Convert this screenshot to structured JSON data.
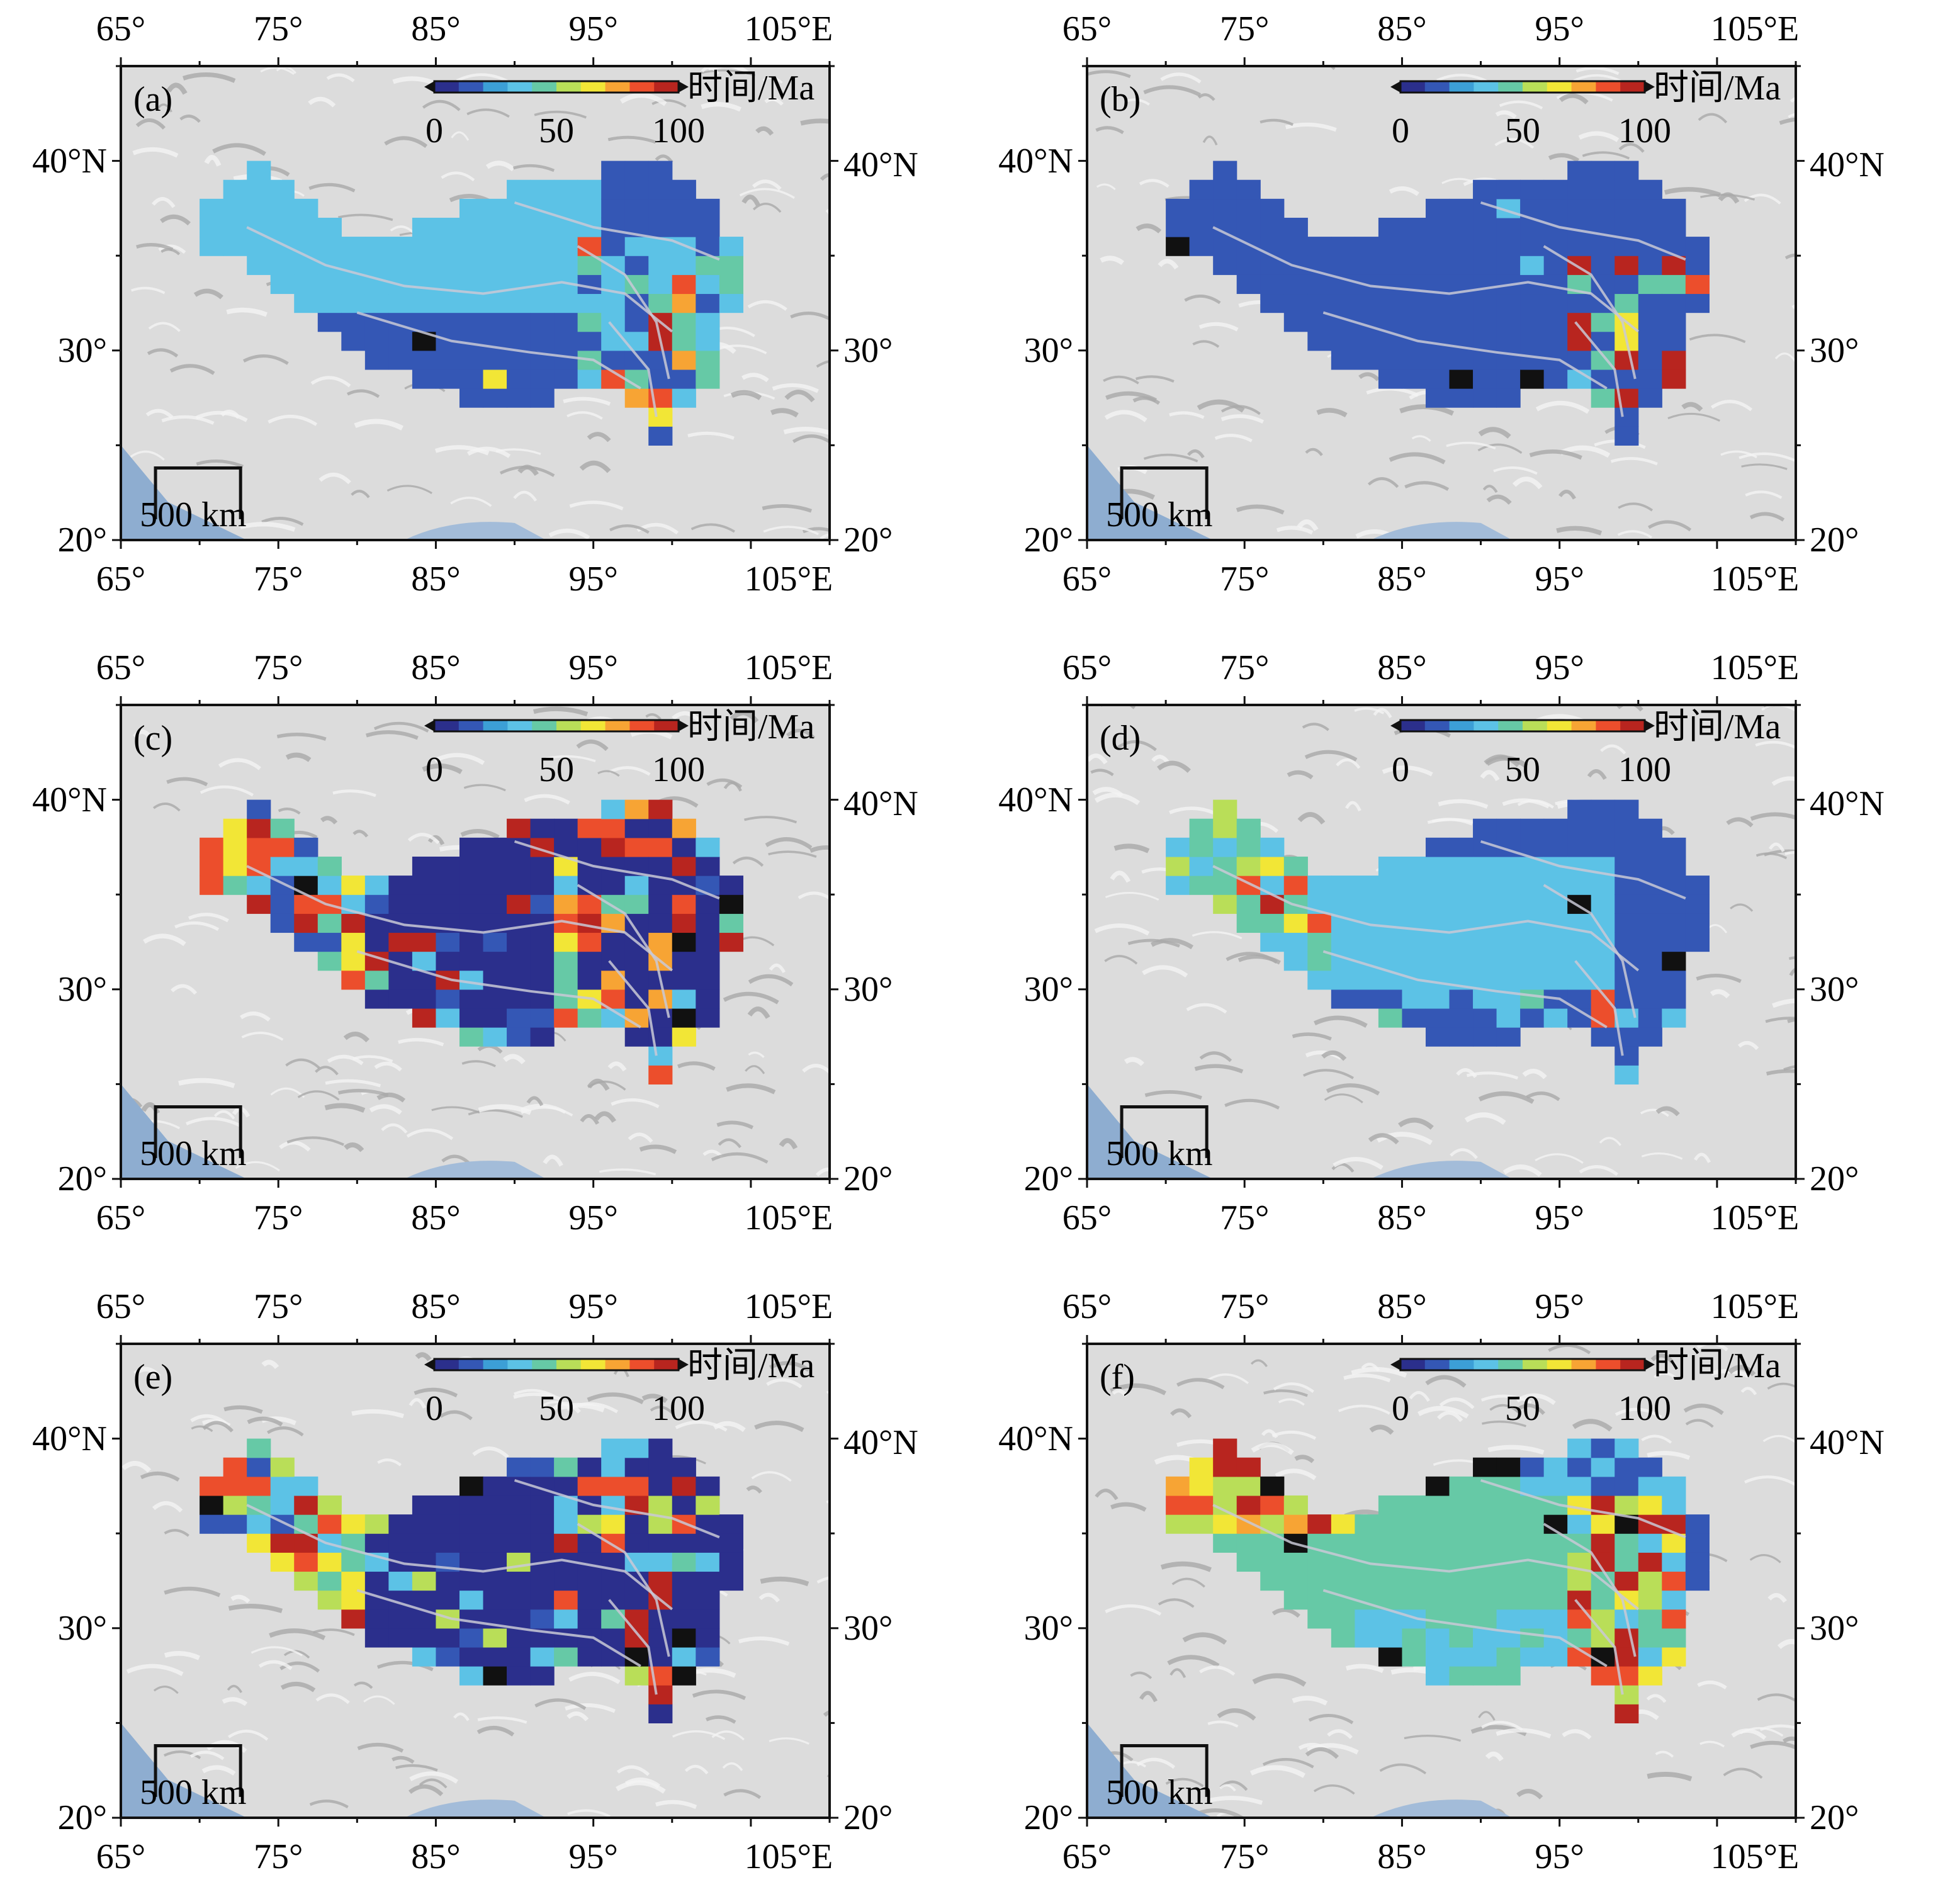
{
  "map": {
    "x_ticks": [
      "65°",
      "75°",
      "85°",
      "95°",
      "105°E"
    ],
    "y_ticks_left": [
      "40°N",
      "30°",
      "20°"
    ],
    "y_ticks_right": [
      "40°N",
      "30°",
      "20°"
    ],
    "lon_range": [
      65,
      110
    ],
    "lat_range": [
      20,
      45
    ],
    "lon_tick_values": [
      65,
      75,
      85,
      95,
      105
    ],
    "lat_tick_values": [
      40,
      30,
      20
    ],
    "scale_bar_label": "500 km",
    "colorbar": {
      "title": "时间/Ma",
      "tick_labels": [
        "0",
        "50",
        "100"
      ],
      "tick_values": [
        0,
        50,
        100
      ],
      "colors": [
        "#2b2f8c",
        "#3457b5",
        "#3c9fd6",
        "#5cc2e6",
        "#66c9a6",
        "#b9de58",
        "#f2e636",
        "#f7a434",
        "#ec4e2c",
        "#b8251f"
      ]
    }
  },
  "panels": [
    {
      "id": "a",
      "label": "(a)"
    },
    {
      "id": "b",
      "label": "(b)"
    },
    {
      "id": "c",
      "label": "(c)"
    },
    {
      "id": "d",
      "label": "(d)"
    },
    {
      "id": "e",
      "label": "(e)"
    },
    {
      "id": "f",
      "label": "(f)"
    }
  ]
}
